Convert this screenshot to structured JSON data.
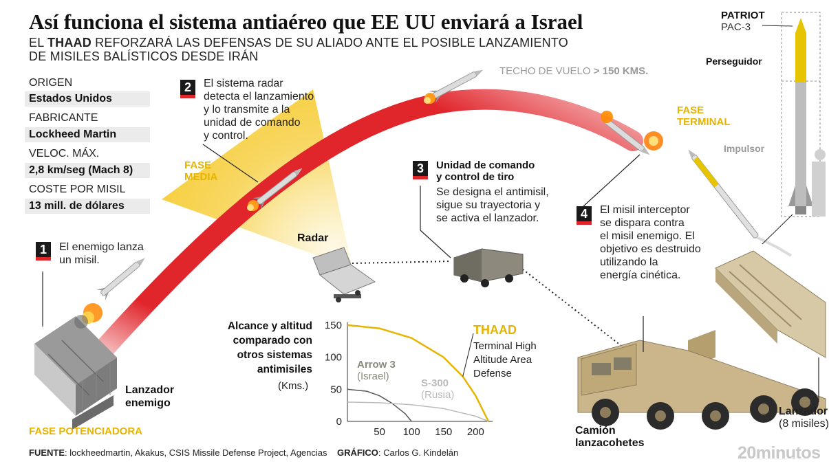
{
  "header": {
    "title": "Así funciona el sistema antiaéreo que EE UU enviará a Israel",
    "subtitle_prefix": "EL ",
    "subtitle_bold": "THAAD",
    "subtitle_rest_line1": " REFORZARÁ LAS DEFENSAS DE SU ALIADO ANTE EL POSIBLE LANZAMIENTO",
    "subtitle_line2": "DE MISILES BALÍSTICOS DESDE IRÁN"
  },
  "specs": [
    {
      "label": "ORIGEN",
      "value": "Estados Unidos"
    },
    {
      "label": "FABRICANTE",
      "value": "Lockheed Martin"
    },
    {
      "label": "VELOC. MÁX.",
      "value": "2,8 km/seg (Mach 8)"
    },
    {
      "label": "COSTE POR MISIL",
      "value": "13 mill. de dólares"
    }
  ],
  "steps": {
    "s1": {
      "num": "1",
      "text": [
        "El enemigo lanza",
        "un misil."
      ]
    },
    "s2": {
      "num": "2",
      "text": [
        "El sistema radar",
        "detecta el lanzamiento",
        "y lo transmite a la",
        "unidad de comando",
        "y control."
      ]
    },
    "s3": {
      "num": "3",
      "title": [
        "Unidad de comando",
        "y control de tiro"
      ],
      "text": [
        "Se designa el antimisil,",
        "sigue su trayectoria y",
        "se activa el lanzador."
      ]
    },
    "s4": {
      "num": "4",
      "text": [
        "El misil interceptor",
        "se dispara contra",
        "el misil enemigo. El",
        "objetivo es destruido",
        "utilizando la",
        "energía cinética."
      ]
    }
  },
  "labels": {
    "ceiling_prefix": "TECHO DE VUELO ",
    "ceiling_value": "> 150 KMS.",
    "phase_mid": [
      "FASE",
      "MEDIA"
    ],
    "phase_terminal": [
      "FASE",
      "TERMINAL"
    ],
    "phase_boost": "FASE POTENCIADORA",
    "radar": "Radar",
    "enemy_launcher": [
      "Lanzador",
      "enemigo"
    ],
    "truck": [
      "Camión",
      "lanzacohetes"
    ],
    "launcher_right": [
      "Lanzador",
      "(8 misiles)"
    ],
    "patriot_name": "PATRIOT",
    "patriot_model": "PAC-3",
    "chaser": "Perseguidor",
    "booster": "Impulsor"
  },
  "chart_data": {
    "type": "line",
    "title": [
      "Alcance y altitud",
      "comparado con",
      "otros sistemas",
      "antimisiles"
    ],
    "ylabel": "(Kms.)",
    "xlabel": "",
    "x_ticks": [
      50,
      100,
      150,
      200
    ],
    "y_ticks": [
      0,
      50,
      100,
      150
    ],
    "xlim": [
      0,
      220
    ],
    "ylim": [
      0,
      150
    ],
    "series": [
      {
        "name": "THAAD",
        "color": "#e6b400",
        "x": [
          0,
          50,
          100,
          150,
          180,
          200,
          220
        ],
        "y": [
          150,
          145,
          130,
          100,
          70,
          40,
          0
        ]
      },
      {
        "name": "Arrow 3",
        "color": "#555555",
        "x": [
          0,
          30,
          50,
          70,
          90,
          100
        ],
        "y": [
          50,
          47,
          40,
          28,
          12,
          0
        ]
      },
      {
        "name": "S-300",
        "color": "#bbbbbb",
        "x": [
          0,
          50,
          100,
          150,
          200,
          220
        ],
        "y": [
          30,
          29,
          26,
          20,
          8,
          0
        ]
      }
    ],
    "annotations": {
      "thaad_name": "THAAD",
      "thaad_desc": [
        "Terminal High",
        "Altitude Area",
        "Defense"
      ],
      "arrow_name": "Arrow 3",
      "arrow_country": "(Israel)",
      "s300_name": "S-300",
      "s300_country": "(Rusia)"
    }
  },
  "footer": {
    "source_label": "FUENTE",
    "source_text": ": lockheedmartin, Akakus, CSIS Missile Defense Project, Agencias",
    "graphic_label": "GRÁFICO",
    "graphic_text": ": Carlos G. Kindelán",
    "brand": "20minutos"
  },
  "colors": {
    "trajectory": "#e0252b",
    "phase_yellow": "#e6b400",
    "sand": "#cbb68c",
    "step_red": "#e0252b"
  }
}
